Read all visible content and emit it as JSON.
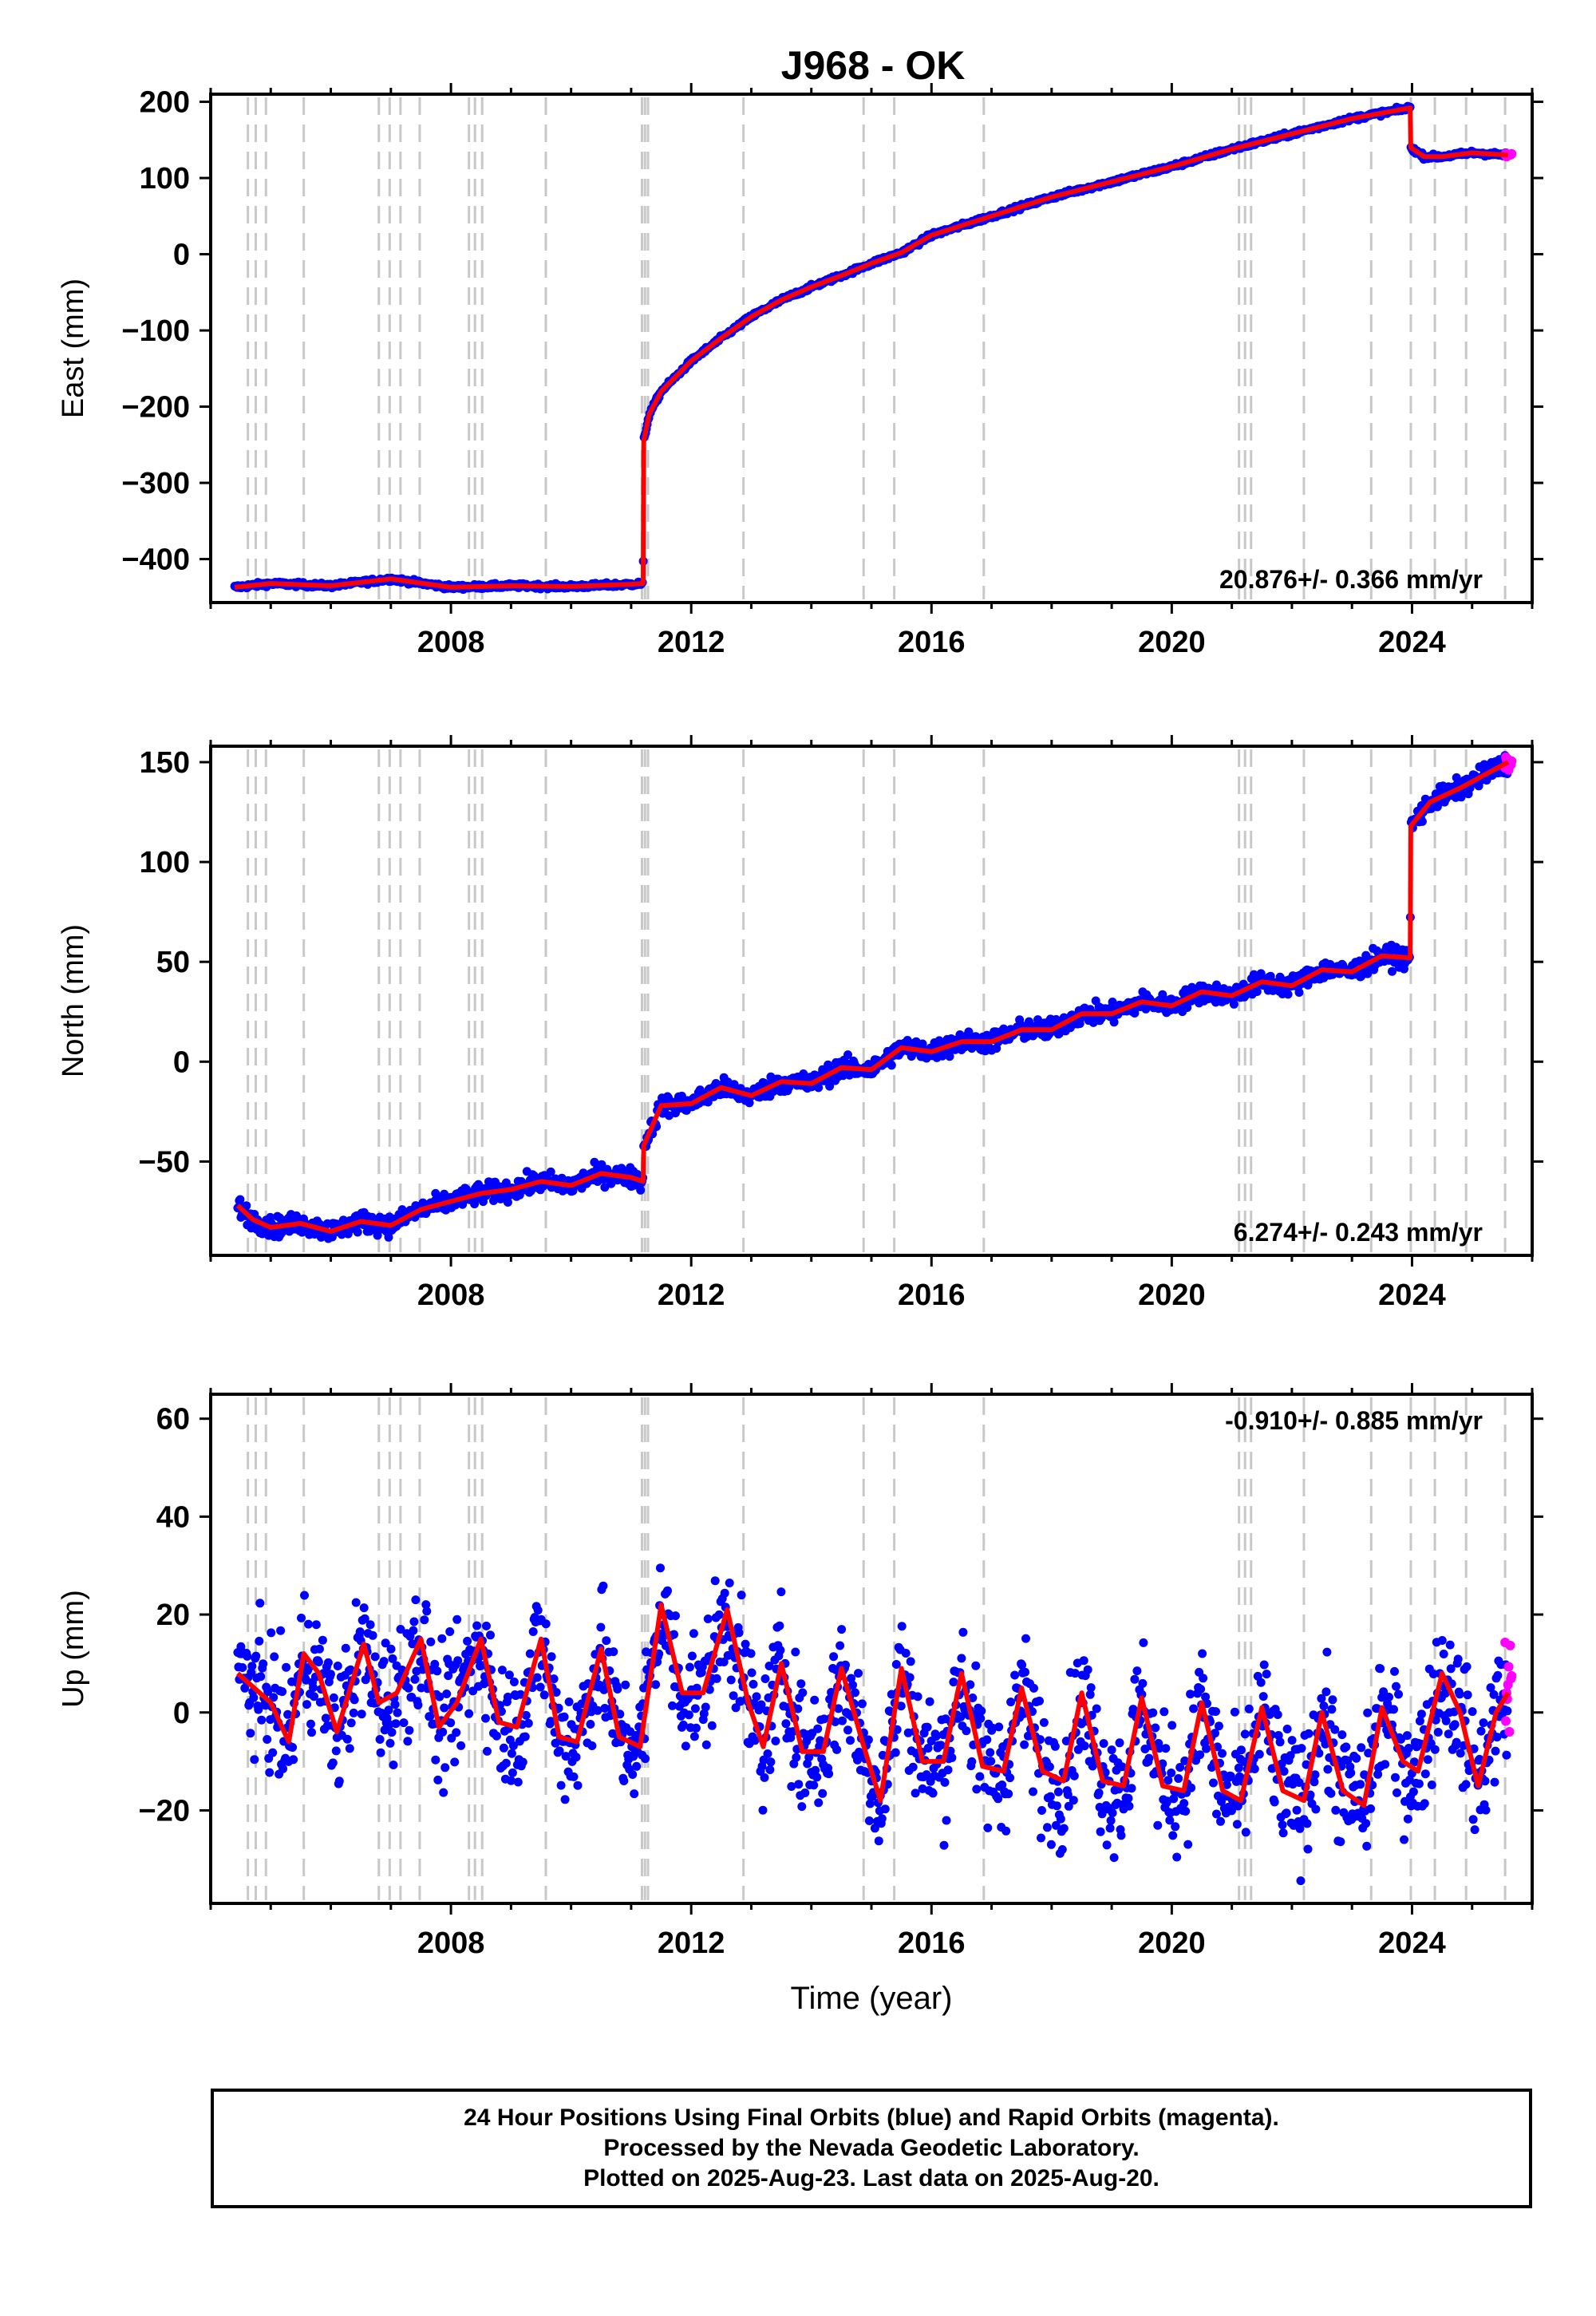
{
  "title": "J968 - OK",
  "chart_data": [
    {
      "type": "scatter",
      "component": "East",
      "ylabel": "East (mm)",
      "xlabel": "",
      "xlim": [
        2004.0,
        2026.0
      ],
      "ylim": [
        -457,
        210
      ],
      "yticks": [
        -400,
        -300,
        -200,
        -100,
        0,
        100,
        200
      ],
      "ytick_labels": [
        "−400",
        "−300",
        "−200",
        "−100",
        "0",
        "100",
        "200"
      ],
      "xticks": [
        2008,
        2012,
        2016,
        2020,
        2024
      ],
      "xtick_labels": [
        "2008",
        "2012",
        "2016",
        "2020",
        "2024"
      ],
      "rate_label": "20.876+/- 0.366 mm/yr",
      "rate_position": "bottom-right",
      "step_epochs": [
        2004.62,
        2004.75,
        2004.92,
        2005.55,
        2006.8,
        2006.98,
        2007.16,
        2007.48,
        2008.3,
        2008.4,
        2008.52,
        2009.58,
        2011.18,
        2011.23,
        2011.28,
        2012.87,
        2014.87,
        2015.38,
        2016.87,
        2021.12,
        2021.22,
        2021.32,
        2022.2,
        2023.32,
        2023.98,
        2024.38,
        2024.9,
        2025.55
      ],
      "model_x": [
        2004.4,
        2005.0,
        2006.0,
        2007.0,
        2008.0,
        2009.0,
        2010.0,
        2011.0,
        2011.2,
        2011.21,
        2011.3,
        2011.5,
        2012.0,
        2012.5,
        2013.0,
        2013.5,
        2014.0,
        2014.5,
        2015.0,
        2015.5,
        2016.0,
        2017.0,
        2018.0,
        2019.0,
        2020.0,
        2021.0,
        2022.0,
        2023.0,
        2023.97,
        2023.98,
        2024.2,
        2024.5,
        2025.0,
        2025.6
      ],
      "model_y": [
        -437,
        -432,
        -435,
        -426,
        -437,
        -435,
        -436,
        -433,
        -432,
        -245,
        -210,
        -180,
        -140,
        -110,
        -82,
        -60,
        -43,
        -28,
        -12,
        2,
        25,
        50,
        75,
        95,
        115,
        138,
        158,
        178,
        192,
        140,
        128,
        128,
        133,
        130
      ],
      "series_colors": {
        "final": "#0000ff",
        "rapid": "#ff00ff",
        "model": "#ff0000"
      },
      "scatter": 1.5
    },
    {
      "type": "scatter",
      "component": "North",
      "ylabel": "North (mm)",
      "xlabel": "",
      "xlim": [
        2004.0,
        2026.0
      ],
      "ylim": [
        -97,
        158
      ],
      "yticks": [
        -50,
        0,
        50,
        100,
        150
      ],
      "ytick_labels": [
        "−50",
        "0",
        "50",
        "100",
        "150"
      ],
      "xticks": [
        2008,
        2012,
        2016,
        2020,
        2024
      ],
      "xtick_labels": [
        "2008",
        "2012",
        "2016",
        "2020",
        "2024"
      ],
      "rate_label": "6.274+/- 0.243 mm/yr",
      "rate_position": "bottom-right",
      "step_epochs": [
        2004.62,
        2004.75,
        2004.92,
        2005.55,
        2006.8,
        2006.98,
        2007.16,
        2007.48,
        2008.3,
        2008.4,
        2008.52,
        2009.58,
        2011.18,
        2011.23,
        2011.28,
        2012.87,
        2014.87,
        2015.38,
        2016.87,
        2021.12,
        2021.22,
        2021.32,
        2022.2,
        2023.32,
        2023.98,
        2024.38,
        2024.9,
        2025.55
      ],
      "model_x": [
        2004.45,
        2004.7,
        2005.0,
        2005.5,
        2006.0,
        2006.5,
        2007.0,
        2007.5,
        2008.0,
        2008.5,
        2009.0,
        2009.5,
        2010.0,
        2010.5,
        2011.0,
        2011.2,
        2011.21,
        2011.5,
        2012.0,
        2012.5,
        2013.0,
        2013.5,
        2014.0,
        2014.5,
        2015.0,
        2015.5,
        2016.0,
        2016.5,
        2017.0,
        2017.5,
        2018.0,
        2018.5,
        2019.0,
        2019.5,
        2020.0,
        2020.5,
        2021.0,
        2021.5,
        2022.0,
        2022.5,
        2023.0,
        2023.5,
        2023.97,
        2023.98,
        2024.3,
        2024.8,
        2025.6
      ],
      "model_y": [
        -72,
        -79,
        -83,
        -81,
        -85,
        -80,
        -82,
        -74,
        -70,
        -66,
        -64,
        -60,
        -62,
        -56,
        -58,
        -60,
        -42,
        -22,
        -21,
        -13,
        -17,
        -10,
        -11,
        -3,
        -4,
        7,
        5,
        10,
        10,
        16,
        16,
        24,
        24,
        30,
        28,
        35,
        33,
        40,
        38,
        46,
        45,
        53,
        52,
        118,
        130,
        137,
        150
      ],
      "series_colors": {
        "final": "#0000ff",
        "rapid": "#ff00ff",
        "model": "#ff0000"
      },
      "scatter": 2.5
    },
    {
      "type": "scatter",
      "component": "Up",
      "ylabel": "Up (mm)",
      "xlabel": "Time (year)",
      "xlim": [
        2004.0,
        2026.0
      ],
      "ylim": [
        -39,
        65
      ],
      "yticks": [
        -20,
        0,
        20,
        40,
        60
      ],
      "ytick_labels": [
        "−20",
        "0",
        "20",
        "40",
        "60"
      ],
      "xticks": [
        2008,
        2012,
        2016,
        2020,
        2024
      ],
      "xtick_labels": [
        "2008",
        "2012",
        "2016",
        "2020",
        "2024"
      ],
      "rate_label": "-0.910+/- 0.885 mm/yr",
      "rate_position": "top-right",
      "step_epochs": [
        2004.62,
        2004.75,
        2004.92,
        2005.55,
        2006.8,
        2006.98,
        2007.16,
        2007.48,
        2008.3,
        2008.4,
        2008.52,
        2009.58,
        2011.18,
        2011.23,
        2011.28,
        2012.87,
        2014.87,
        2015.38,
        2016.87,
        2021.12,
        2021.22,
        2021.32,
        2022.2,
        2023.32,
        2023.98,
        2024.38,
        2024.9,
        2025.55
      ],
      "model_x": [
        2004.45,
        2005.0,
        2005.3,
        2005.55,
        2005.8,
        2006.1,
        2006.55,
        2006.8,
        2007.1,
        2007.5,
        2007.8,
        2008.1,
        2008.5,
        2008.8,
        2009.1,
        2009.5,
        2009.8,
        2010.1,
        2010.5,
        2010.8,
        2011.15,
        2011.5,
        2011.85,
        2012.2,
        2012.6,
        2012.95,
        2013.2,
        2013.5,
        2013.85,
        2014.2,
        2014.5,
        2014.85,
        2015.15,
        2015.5,
        2015.85,
        2016.2,
        2016.5,
        2016.85,
        2017.2,
        2017.5,
        2017.85,
        2018.2,
        2018.5,
        2018.85,
        2019.2,
        2019.5,
        2019.85,
        2020.2,
        2020.5,
        2020.85,
        2021.15,
        2021.5,
        2021.85,
        2022.2,
        2022.5,
        2022.85,
        2023.2,
        2023.5,
        2023.85,
        2024.1,
        2024.5,
        2024.8,
        2025.1,
        2025.4,
        2025.6
      ],
      "model_y": [
        8,
        2,
        -6,
        12,
        8,
        -4,
        14,
        2,
        4,
        15,
        -3,
        2,
        15,
        -2,
        -3,
        15,
        -5,
        -6,
        13,
        -5,
        -7,
        22,
        4,
        4,
        21,
        2,
        -7,
        10,
        -8,
        -8,
        9,
        -6,
        -18,
        9,
        -10,
        -10,
        8,
        -11,
        -12,
        5,
        -12,
        -14,
        4,
        -14,
        -15,
        3,
        -15,
        -16,
        2,
        -16,
        -18,
        1,
        -16,
        -18,
        0,
        -16,
        -19,
        1,
        -10,
        -12,
        8,
        0,
        -15,
        0,
        4
      ],
      "series_colors": {
        "final": "#0000ff",
        "rapid": "#ff00ff",
        "model": "#ff0000"
      },
      "scatter": 6.5
    }
  ],
  "footer": {
    "line1": "24 Hour Positions Using Final Orbits (blue) and Rapid Orbits (magenta).",
    "line2": "Processed by the Nevada Geodetic Laboratory.",
    "line3": "Plotted on 2025-Aug-23. Last data on 2025-Aug-20."
  }
}
